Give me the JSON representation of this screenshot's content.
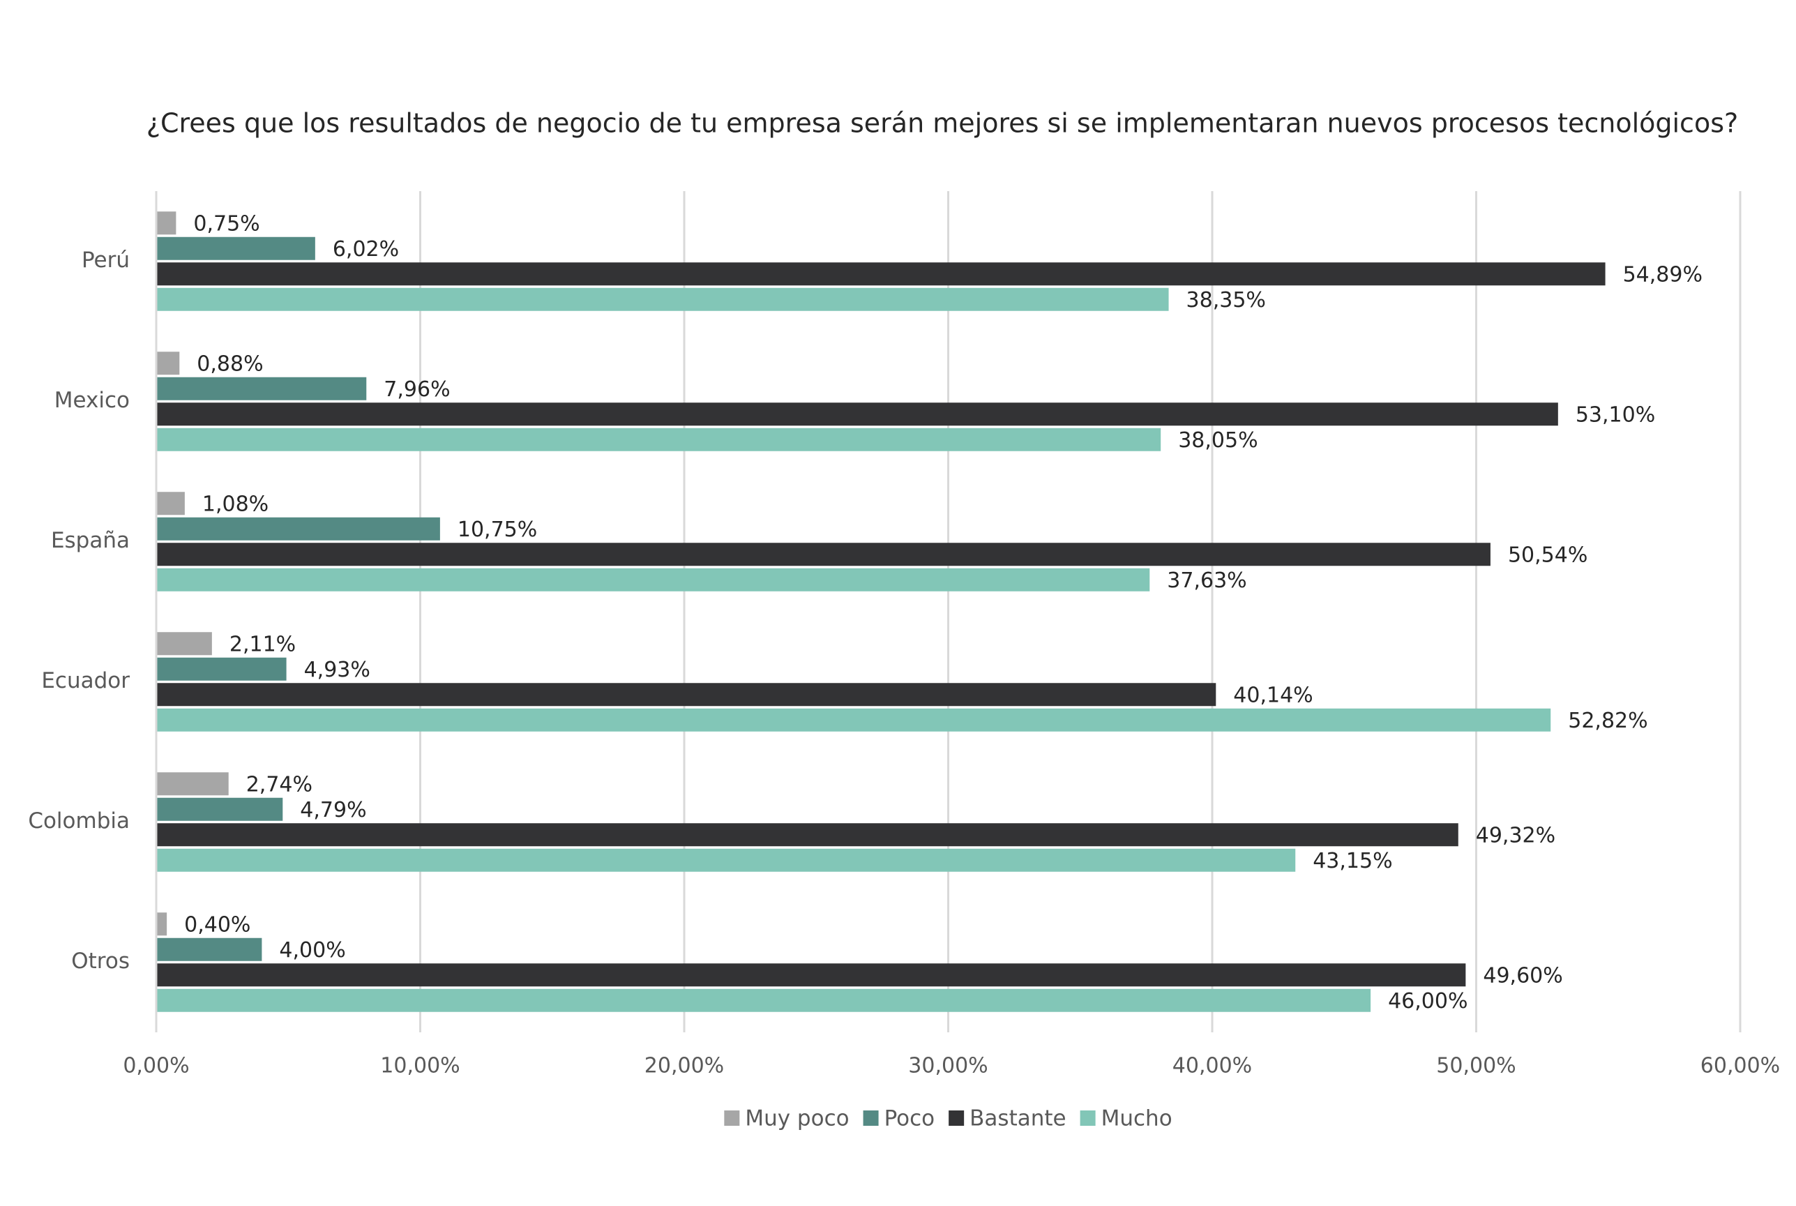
{
  "chart_data": {
    "type": "hbar",
    "title": "¿Crees que los resultados de negocio de tu empresa serán mejores si se implementaran nuevos procesos tecnológicos?",
    "categories": [
      "Perú",
      "Mexico",
      "España",
      "Ecuador",
      "Colombia",
      "Otros"
    ],
    "series": [
      {
        "name": "Muy poco",
        "color": "#a6a6a6",
        "values": [
          0.75,
          0.88,
          1.08,
          2.11,
          2.74,
          0.4
        ],
        "value_labels": [
          "0,75%",
          "0,88%",
          "1,08%",
          "2,11%",
          "2,74%",
          "0,40%"
        ]
      },
      {
        "name": "Poco",
        "color": "#548a84",
        "values": [
          6.02,
          7.96,
          10.75,
          4.93,
          4.79,
          4.0
        ],
        "value_labels": [
          "6,02%",
          "7,96%",
          "10,75%",
          "4,93%",
          "4,79%",
          "4,00%"
        ]
      },
      {
        "name": "Bastante",
        "color": "#333335",
        "values": [
          54.89,
          53.1,
          50.54,
          40.14,
          49.32,
          49.6
        ],
        "value_labels": [
          "54,89%",
          "53,10%",
          "50,54%",
          "40,14%",
          "49,32%",
          "49,60%"
        ]
      },
      {
        "name": "Mucho",
        "color": "#82c6b7",
        "values": [
          38.35,
          38.05,
          37.63,
          52.82,
          43.15,
          46.0
        ],
        "value_labels": [
          "38,35%",
          "38,05%",
          "37,63%",
          "52,82%",
          "43,15%",
          "46,00%"
        ]
      }
    ],
    "xlim": [
      0,
      60
    ],
    "xticks": [
      {
        "value": 0,
        "label": "0,00%"
      },
      {
        "value": 10,
        "label": "10,00%"
      },
      {
        "value": 20,
        "label": "20,00%"
      },
      {
        "value": 30,
        "label": "30,00%"
      },
      {
        "value": 40,
        "label": "40,00%"
      },
      {
        "value": 50,
        "label": "50,00%"
      },
      {
        "value": 60,
        "label": "60,00%"
      }
    ],
    "grid": true,
    "legend": "bottom"
  }
}
